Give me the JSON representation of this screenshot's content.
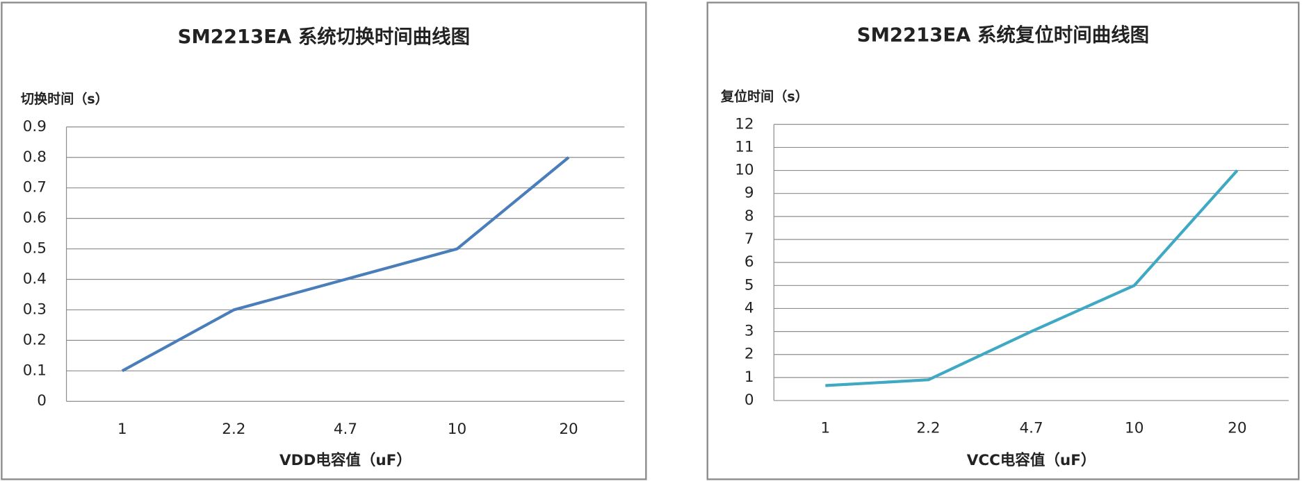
{
  "chart_data": [
    {
      "type": "line",
      "title": "SM2213EA 系统切换时间曲线图",
      "y_label": "切换时间（s）",
      "x_label": "VDD电容值（uF）",
      "categories": [
        "1",
        "2.2",
        "4.7",
        "10",
        "20"
      ],
      "values": [
        0.1,
        0.3,
        0.4,
        0.5,
        0.8
      ],
      "color": "#4a7ebb",
      "ylim": [
        0,
        0.9
      ],
      "yticks": [
        0,
        0.1,
        0.2,
        0.3,
        0.4,
        0.5,
        0.6,
        0.7,
        0.8,
        0.9
      ],
      "grid": true
    },
    {
      "type": "line",
      "title": "SM2213EA  系统复位时间曲线图",
      "y_label": "复位时间（s）",
      "x_label": "VCC电容值（uF）",
      "categories": [
        "1",
        "2.2",
        "4.7",
        "10",
        "20"
      ],
      "values": [
        0.65,
        0.9,
        3,
        5,
        10
      ],
      "color": "#3fa9c4",
      "ylim": [
        0,
        12
      ],
      "yticks": [
        0,
        1,
        2,
        3,
        4,
        5,
        6,
        7,
        8,
        9,
        10,
        11,
        12
      ],
      "grid": true
    }
  ]
}
